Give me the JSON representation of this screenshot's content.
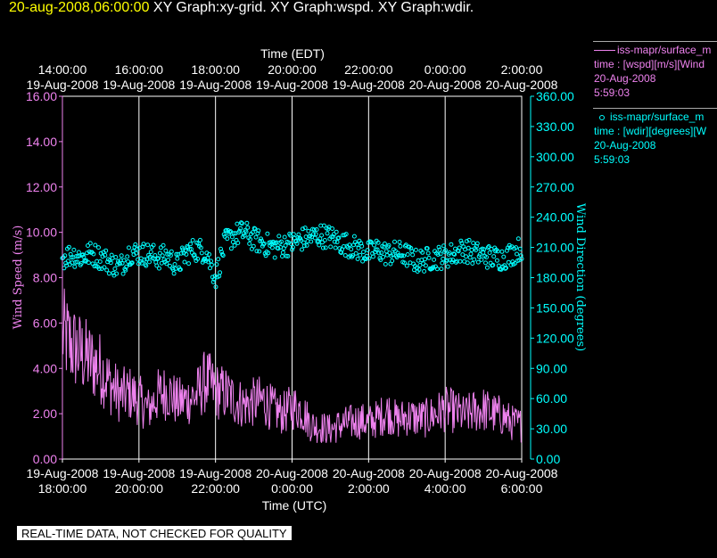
{
  "header": {
    "timestamp": "20-aug-2008,06:00:00",
    "graph_titles": "XY Graph:xy-grid.  XY Graph:wspd.  XY Graph:wdir."
  },
  "legend": {
    "wspd": {
      "line1": "iss-mapr/surface_m",
      "line2": "time : [wspd][m/s][Wind",
      "line3": "20-Aug-2008",
      "line4": "5:59:03"
    },
    "wdir": {
      "line1": "iss-mapr/surface_m",
      "line2": "time : [wdir][degrees][W",
      "line3": "20-Aug-2008",
      "line4": "5:59:03"
    }
  },
  "notice": "REAL-TIME DATA, NOT CHECKED FOR QUALITY",
  "colors": {
    "wspd": "#ee82ee",
    "wdir": "#00ffff",
    "axes": "#ffffff",
    "grid": "#ffffff",
    "stamp": "#ffff00"
  },
  "chart_data": {
    "type": "line",
    "top_axis_title": "Time (EDT)",
    "bottom_axis_title": "Time (UTC)",
    "left_axis_title": "Wind Speed (m/s)",
    "right_axis_title": "Wind Direction (degrees)",
    "x_range_utc_hours": [
      18,
      30
    ],
    "grid": "vertical",
    "top_ticks": [
      {
        "time": "14:00:00",
        "date": "19-Aug-2008"
      },
      {
        "time": "16:00:00",
        "date": "19-Aug-2008"
      },
      {
        "time": "18:00:00",
        "date": "19-Aug-2008"
      },
      {
        "time": "20:00:00",
        "date": "19-Aug-2008"
      },
      {
        "time": "22:00:00",
        "date": "19-Aug-2008"
      },
      {
        "time": "0:00:00",
        "date": "20-Aug-2008"
      },
      {
        "time": "2:00:00",
        "date": "20-Aug-2008"
      }
    ],
    "bottom_ticks": [
      {
        "date": "19-Aug-2008",
        "time": "18:00:00"
      },
      {
        "date": "19-Aug-2008",
        "time": "20:00:00"
      },
      {
        "date": "19-Aug-2008",
        "time": "22:00:00"
      },
      {
        "date": "20-Aug-2008",
        "time": "0:00:00"
      },
      {
        "date": "20-Aug-2008",
        "time": "2:00:00"
      },
      {
        "date": "20-Aug-2008",
        "time": "4:00:00"
      },
      {
        "date": "20-Aug-2008",
        "time": "6:00:00"
      }
    ],
    "left_axis": {
      "min": 0,
      "max": 16,
      "ticks": [
        "0.00",
        "2.00",
        "4.00",
        "6.00",
        "8.00",
        "10.00",
        "12.00",
        "14.00",
        "16.00"
      ]
    },
    "right_axis": {
      "min": 0,
      "max": 360,
      "ticks": [
        "0.00",
        "30.00",
        "60.00",
        "90.00",
        "120.00",
        "150.00",
        "180.00",
        "210.00",
        "240.00",
        "270.00",
        "300.00",
        "330.00",
        "360.00"
      ]
    },
    "series": [
      {
        "name": "iss-mapr/surface_m",
        "kind": "line",
        "axis": "left",
        "x_hours_since_1800utc": [
          0,
          0.25,
          0.5,
          0.75,
          1,
          1.25,
          1.5,
          1.75,
          2,
          2.25,
          2.5,
          2.75,
          3,
          3.25,
          3.5,
          3.75,
          4,
          4.25,
          4.5,
          4.75,
          5,
          5.25,
          5.5,
          5.75,
          6,
          6.25,
          6.5,
          6.75,
          7,
          7.25,
          7.5,
          7.75,
          8,
          8.25,
          8.5,
          8.75,
          9,
          9.25,
          9.5,
          9.75,
          10,
          10.25,
          10.5,
          10.75,
          11,
          11.25,
          11.5,
          11.75,
          12
        ],
        "values": [
          5.5,
          5.0,
          4.6,
          4.3,
          4.0,
          3.3,
          2.8,
          2.9,
          2.6,
          2.2,
          2.8,
          3.0,
          2.5,
          2.6,
          2.8,
          3.5,
          3.0,
          2.9,
          2.6,
          2.4,
          2.5,
          2.6,
          2.2,
          2.0,
          2.3,
          2.2,
          1.5,
          1.4,
          1.3,
          1.5,
          1.6,
          1.7,
          1.6,
          1.8,
          2.1,
          1.7,
          1.9,
          1.8,
          1.8,
          2.0,
          2.2,
          2.1,
          1.9,
          2.1,
          2.2,
          2.0,
          1.9,
          1.6,
          1.5
        ]
      },
      {
        "name": "iss-mapr/surface_m",
        "kind": "scatter",
        "axis": "right",
        "x_hours_since_1800utc": [
          0,
          0.25,
          0.5,
          0.75,
          1,
          1.25,
          1.5,
          1.75,
          2,
          2.25,
          2.5,
          2.75,
          3,
          3.25,
          3.5,
          3.75,
          4,
          4.25,
          4.5,
          4.75,
          5,
          5.25,
          5.5,
          5.75,
          6,
          6.25,
          6.5,
          6.75,
          7,
          7.25,
          7.5,
          7.75,
          8,
          8.25,
          8.5,
          8.75,
          9,
          9.25,
          9.5,
          9.75,
          10,
          10.25,
          10.5,
          10.75,
          11,
          11.25,
          11.5,
          11.75,
          12
        ],
        "values": [
          200,
          203,
          200,
          204,
          200,
          195,
          190,
          205,
          204,
          203,
          200,
          201,
          192,
          205,
          208,
          206,
          180,
          215,
          222,
          225,
          218,
          214,
          210,
          212,
          214,
          218,
          220,
          222,
          220,
          215,
          212,
          208,
          204,
          208,
          203,
          205,
          202,
          196,
          198,
          200,
          201,
          204,
          208,
          204,
          202,
          200,
          199,
          204,
          210
        ]
      }
    ]
  }
}
